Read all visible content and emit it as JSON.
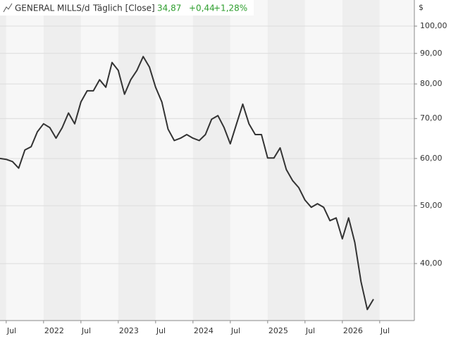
{
  "chart_data": {
    "type": "line",
    "title": "GENERAL MILLS/d",
    "subtitle": "Täglich [Close]",
    "last_value": "34,87",
    "change": "+0,44",
    "change_pct": "+1,28%",
    "y_unit": "$",
    "log_scale": true,
    "grid": true,
    "x": [
      "2021-06",
      "2021-07",
      "2021-08",
      "2021-09",
      "2021-10",
      "2021-11",
      "2021-12",
      "2022-01",
      "2022-02",
      "2022-03",
      "2022-04",
      "2022-05",
      "2022-06",
      "2022-07",
      "2022-08",
      "2022-09",
      "2022-10",
      "2022-11",
      "2022-12",
      "2023-01",
      "2023-02",
      "2023-03",
      "2023-04",
      "2023-05",
      "2023-06",
      "2023-07",
      "2023-08",
      "2023-09",
      "2023-10",
      "2023-11",
      "2023-12",
      "2024-01",
      "2024-02",
      "2024-03",
      "2024-04",
      "2024-05",
      "2024-06",
      "2024-07",
      "2024-08",
      "2024-09",
      "2024-10",
      "2024-11",
      "2024-12",
      "2025-01",
      "2025-02",
      "2025-03",
      "2025-04",
      "2025-05",
      "2025-06",
      "2025-07",
      "2025-08",
      "2025-09",
      "2025-10",
      "2025-11",
      "2025-12",
      "2026-01",
      "2026-02",
      "2026-03",
      "2026-04",
      "2026-05",
      "2026-06"
    ],
    "series": [
      {
        "name": "GENERAL MILLS",
        "color": "#333333",
        "values": [
          60,
          59.8,
          59.3,
          57.8,
          62,
          62.8,
          66.5,
          68.6,
          67.6,
          64.9,
          67.6,
          71.5,
          68.6,
          74.6,
          77.9,
          77.9,
          81.3,
          79,
          86.9,
          84.3,
          76.9,
          81.3,
          84.3,
          88.9,
          85.4,
          79,
          74.6,
          67.2,
          64.3,
          64.9,
          65.8,
          64.9,
          64.3,
          65.8,
          69.8,
          70.8,
          67.6,
          63.5,
          68.6,
          74,
          68.6,
          65.8,
          65.8,
          60.1,
          60.1,
          62.5,
          57.5,
          55.1,
          53.6,
          51.1,
          49.7,
          50.4,
          49.7,
          47.2,
          47.7,
          44,
          47.7,
          43.4,
          37.3,
          33.5,
          34.87
        ]
      }
    ],
    "xlim": [
      "2021-06",
      "2026-06"
    ],
    "ylim": [
      32.1,
      110.6
    ],
    "yticks": [
      {
        "value": 40,
        "label": "40,00"
      },
      {
        "value": 50,
        "label": "50,00"
      },
      {
        "value": 60,
        "label": "60,00"
      },
      {
        "value": 70,
        "label": "70,00"
      },
      {
        "value": 80,
        "label": "80,00"
      },
      {
        "value": 90,
        "label": "90,00"
      },
      {
        "value": 100,
        "label": "100,00"
      }
    ],
    "xticks": [
      {
        "value": "2021-07",
        "label": "Jul"
      },
      {
        "value": "2022-01",
        "label": "2022"
      },
      {
        "value": "2022-07",
        "label": "Jul"
      },
      {
        "value": "2023-01",
        "label": "2023"
      },
      {
        "value": "2023-07",
        "label": "Jul"
      },
      {
        "value": "2024-01",
        "label": "2024"
      },
      {
        "value": "2024-07",
        "label": "Jul"
      },
      {
        "value": "2025-01",
        "label": "2025"
      },
      {
        "value": "2025-07",
        "label": "Jul"
      },
      {
        "value": "2026-01",
        "label": "2026"
      },
      {
        "value": "2026-07",
        "label": "Jul"
      }
    ]
  }
}
